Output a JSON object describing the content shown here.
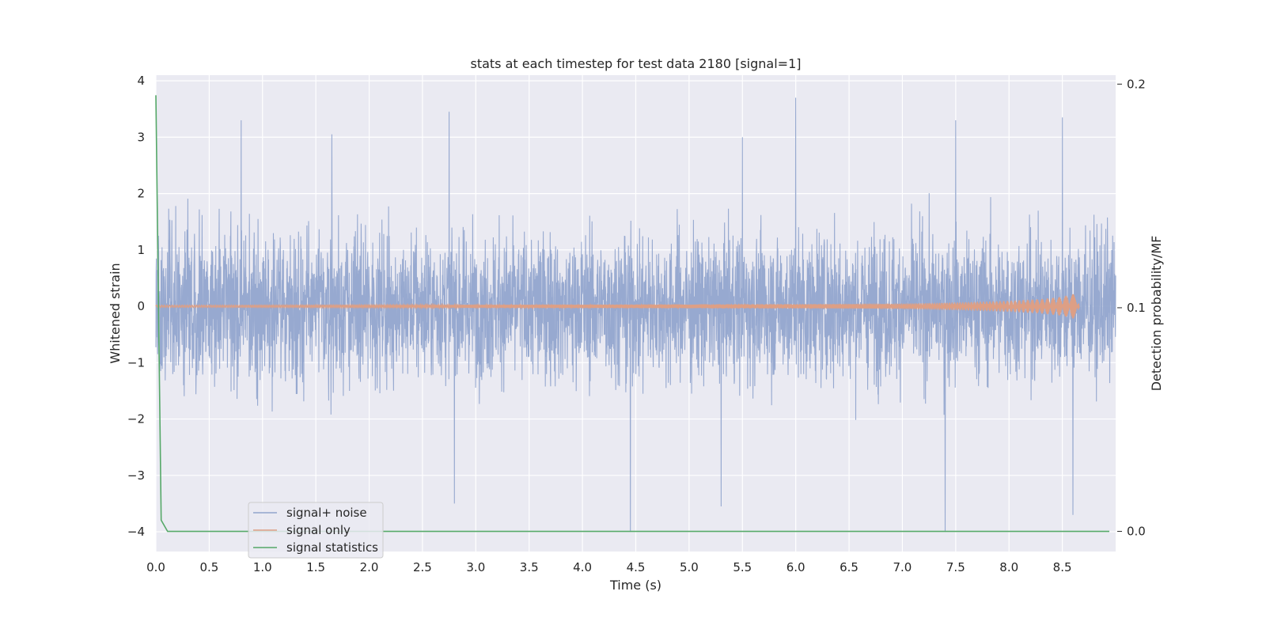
{
  "chart_data": {
    "type": "line",
    "title": "stats at each timestep for test data 2180 [signal=1]",
    "xlabel": "Time (s)",
    "ylabel": "Whitened strain",
    "y2label": "Detection probability/MF",
    "xlim": [
      0.0,
      9.0
    ],
    "ylim": [
      -4.35,
      4.1
    ],
    "y2lim": [
      -0.009,
      0.204
    ],
    "xticks": [
      0.0,
      0.5,
      1.0,
      1.5,
      2.0,
      2.5,
      3.0,
      3.5,
      4.0,
      4.5,
      5.0,
      5.5,
      6.0,
      6.5,
      7.0,
      7.5,
      8.0,
      8.5
    ],
    "xtick_labels": [
      "0.0",
      "0.5",
      "1.0",
      "1.5",
      "2.0",
      "2.5",
      "3.0",
      "3.5",
      "4.0",
      "4.5",
      "5.0",
      "5.5",
      "6.0",
      "6.5",
      "7.0",
      "7.5",
      "8.0",
      "8.5"
    ],
    "yticks": [
      -4,
      -3,
      -2,
      -1,
      0,
      1,
      2,
      3,
      4
    ],
    "ytick_labels": [
      "−4",
      "−3",
      "−2",
      "−1",
      "0",
      "1",
      "2",
      "3",
      "4"
    ],
    "y2ticks": [
      0.0,
      0.1,
      0.2
    ],
    "y2tick_labels": [
      "0.0",
      "0.1",
      "0.2"
    ],
    "grid": true,
    "legend_placement": "lower-left",
    "series": [
      {
        "name": "signal+ noise",
        "axis": "left",
        "color": "#92a5cd",
        "description": "whitened noise, roughly uniform amplitude ~±2.5 with peaks near ±3.7",
        "amplitude": 2.3,
        "peaks": [
          [
            0.8,
            3.3
          ],
          [
            1.65,
            3.05
          ],
          [
            2.75,
            3.45
          ],
          [
            4.45,
            -4.0
          ],
          [
            5.5,
            3.0
          ],
          [
            6.0,
            3.7
          ],
          [
            7.4,
            -4.0
          ],
          [
            7.5,
            3.3
          ],
          [
            8.5,
            3.35
          ],
          [
            8.6,
            -3.7
          ],
          [
            2.8,
            -3.5
          ],
          [
            5.3,
            -3.55
          ]
        ]
      },
      {
        "name": "signal only",
        "axis": "left",
        "color": "#dd9f85",
        "description": "chirp signal with amplitude growing toward merger near 8.65 s",
        "x": [
          0.0,
          2.0,
          4.0,
          6.0,
          7.0,
          7.5,
          8.0,
          8.3,
          8.5,
          8.6,
          8.65,
          8.66
        ],
        "envelope": [
          0.02,
          0.025,
          0.03,
          0.04,
          0.05,
          0.07,
          0.1,
          0.13,
          0.17,
          0.22,
          0.15,
          0.0
        ]
      },
      {
        "name": "signal statistics",
        "axis": "right",
        "color": "#55a868",
        "x": [
          0.0,
          0.05,
          0.11,
          0.2,
          1.0,
          3.0,
          5.0,
          7.0,
          9.0
        ],
        "values": [
          0.195,
          0.005,
          0.0,
          0.0,
          0.0,
          0.0,
          0.0,
          0.0,
          0.0
        ]
      }
    ]
  }
}
